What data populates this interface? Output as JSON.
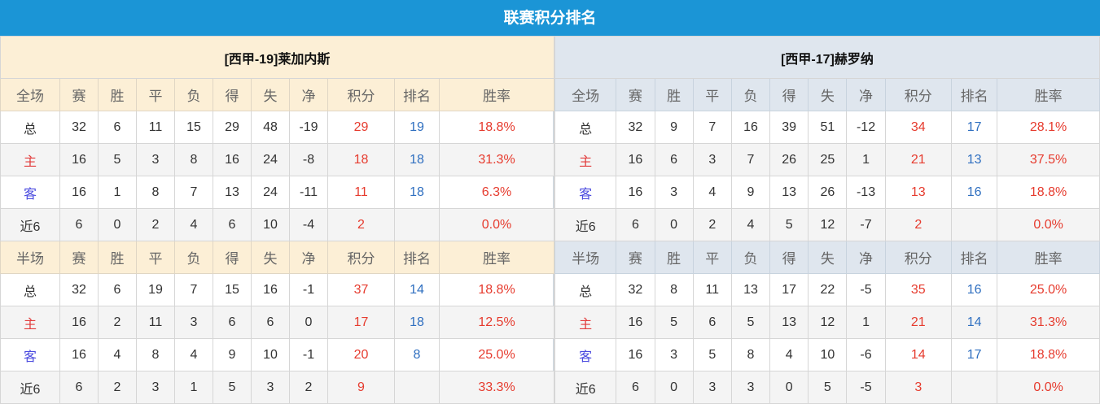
{
  "title": "联赛积分排名",
  "headers": {
    "full": "全场",
    "half": "半场",
    "cols": [
      "赛",
      "胜",
      "平",
      "负",
      "得",
      "失",
      "净",
      "积分",
      "排名",
      "胜率"
    ]
  },
  "colors": {
    "title_bg": "#1b95d6",
    "points": "#e63b2e",
    "rank": "#2f6fc0"
  },
  "teams": [
    {
      "name": "[西甲-19]莱加内斯",
      "full": [
        [
          "总",
          "32",
          "6",
          "11",
          "15",
          "29",
          "48",
          "-19",
          "29",
          "19",
          "18.8%"
        ],
        [
          "主",
          "16",
          "5",
          "3",
          "8",
          "16",
          "24",
          "-8",
          "18",
          "18",
          "31.3%"
        ],
        [
          "客",
          "16",
          "1",
          "8",
          "7",
          "13",
          "24",
          "-11",
          "11",
          "18",
          "6.3%"
        ],
        [
          "近6",
          "6",
          "0",
          "2",
          "4",
          "6",
          "10",
          "-4",
          "2",
          "",
          "0.0%"
        ]
      ],
      "half": [
        [
          "总",
          "32",
          "6",
          "19",
          "7",
          "15",
          "16",
          "-1",
          "37",
          "14",
          "18.8%"
        ],
        [
          "主",
          "16",
          "2",
          "11",
          "3",
          "6",
          "6",
          "0",
          "17",
          "18",
          "12.5%"
        ],
        [
          "客",
          "16",
          "4",
          "8",
          "4",
          "9",
          "10",
          "-1",
          "20",
          "8",
          "25.0%"
        ],
        [
          "近6",
          "6",
          "2",
          "3",
          "1",
          "5",
          "3",
          "2",
          "9",
          "",
          "33.3%"
        ]
      ]
    },
    {
      "name": "[西甲-17]赫罗纳",
      "full": [
        [
          "总",
          "32",
          "9",
          "7",
          "16",
          "39",
          "51",
          "-12",
          "34",
          "17",
          "28.1%"
        ],
        [
          "主",
          "16",
          "6",
          "3",
          "7",
          "26",
          "25",
          "1",
          "21",
          "13",
          "37.5%"
        ],
        [
          "客",
          "16",
          "3",
          "4",
          "9",
          "13",
          "26",
          "-13",
          "13",
          "16",
          "18.8%"
        ],
        [
          "近6",
          "6",
          "0",
          "2",
          "4",
          "5",
          "12",
          "-7",
          "2",
          "",
          "0.0%"
        ]
      ],
      "half": [
        [
          "总",
          "32",
          "8",
          "11",
          "13",
          "17",
          "22",
          "-5",
          "35",
          "16",
          "25.0%"
        ],
        [
          "主",
          "16",
          "5",
          "6",
          "5",
          "13",
          "12",
          "1",
          "21",
          "14",
          "31.3%"
        ],
        [
          "客",
          "16",
          "3",
          "5",
          "8",
          "4",
          "10",
          "-6",
          "14",
          "17",
          "18.8%"
        ],
        [
          "近6",
          "6",
          "0",
          "3",
          "3",
          "0",
          "5",
          "-5",
          "3",
          "",
          "0.0%"
        ]
      ]
    }
  ]
}
